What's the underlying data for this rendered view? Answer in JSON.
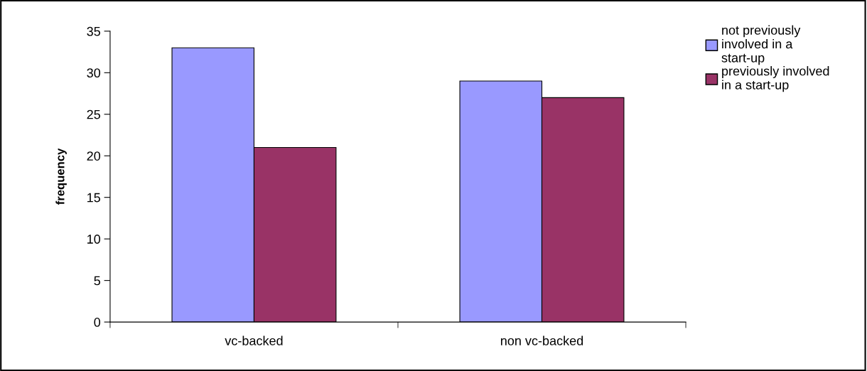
{
  "chart_data": {
    "type": "bar",
    "ylabel": "frequency",
    "categories": [
      "vc-backed",
      "non vc-backed"
    ],
    "series": [
      {
        "name": "not previously involved in a start-up",
        "color": "#9999ff",
        "values": [
          33,
          29
        ]
      },
      {
        "name": "previously involved in a start-up",
        "color": "#993366",
        "values": [
          21,
          27
        ]
      }
    ],
    "ylim": [
      0,
      35
    ],
    "yticks": [
      0,
      5,
      10,
      15,
      20,
      25,
      30,
      35
    ],
    "grid": false,
    "legend": "top right"
  }
}
